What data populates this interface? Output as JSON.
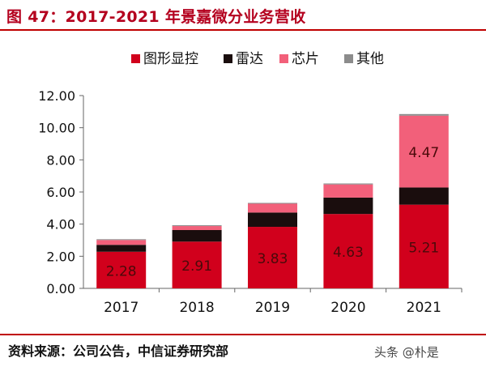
{
  "title": "图 47：2017-2021 年景嘉微分业务营收",
  "source": "资料来源：公司公告，中信证券研究部",
  "watermark": "头条 @朴是",
  "chart_data": {
    "type": "bar",
    "stacked": true,
    "categories": [
      "2017",
      "2018",
      "2019",
      "2020",
      "2021"
    ],
    "ylim": [
      0,
      12
    ],
    "yticks": [
      "0.00",
      "2.00",
      "4.00",
      "6.00",
      "8.00",
      "10.00",
      "12.00"
    ],
    "grid": false,
    "legend_position": "top",
    "series": [
      {
        "name": "图形显控",
        "color": "#d1001c",
        "values": [
          2.28,
          2.91,
          3.83,
          4.63,
          5.21
        ],
        "labels": [
          "2.28",
          "2.91",
          "3.83",
          "4.63",
          "5.21"
        ]
      },
      {
        "name": "雷达",
        "color": "#1a0d0d",
        "values": [
          0.43,
          0.72,
          0.89,
          1.02,
          1.07
        ],
        "labels": [
          null,
          null,
          null,
          null,
          null
        ]
      },
      {
        "name": "芯片",
        "color": "#f2607a",
        "values": [
          0.3,
          0.25,
          0.55,
          0.82,
          4.47
        ],
        "labels": [
          null,
          null,
          null,
          null,
          "4.47"
        ]
      },
      {
        "name": "其他",
        "color": "#8c8c8c",
        "values": [
          0.05,
          0.05,
          0.05,
          0.06,
          0.1
        ],
        "labels": [
          null,
          null,
          null,
          null,
          null
        ]
      }
    ]
  }
}
